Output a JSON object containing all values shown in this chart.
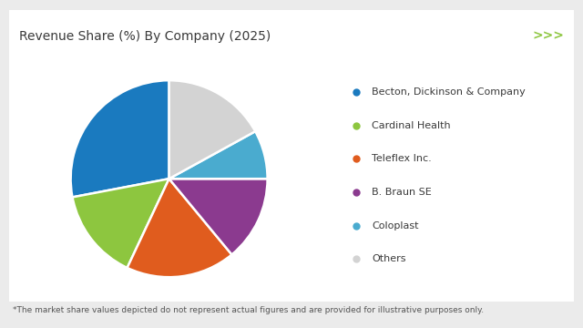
{
  "title": "Revenue Share (%) By Company (2025)",
  "footnote": "*The market share values depicted do not represent actual figures and are provided for illustrative purposes only.",
  "labels": [
    "Becton, Dickinson & Company",
    "Cardinal Health",
    "Teleflex Inc.",
    "B. Braun SE",
    "Coloplast",
    "Others"
  ],
  "sizes": [
    28,
    15,
    18,
    14,
    8,
    17
  ],
  "colors": [
    "#1a7abf",
    "#8dc63f",
    "#e05c1e",
    "#8b3a8f",
    "#4aabcf",
    "#d3d3d3"
  ],
  "background_color": "#ebebeb",
  "chart_bg_color": "#ffffff",
  "title_fontsize": 10,
  "legend_fontsize": 8,
  "footnote_fontsize": 6.5,
  "line_color_thick": "#8dc63f",
  "line_color_thin": "#c8e06a",
  "arrow_color": "#8dc63f",
  "startangle": 90
}
